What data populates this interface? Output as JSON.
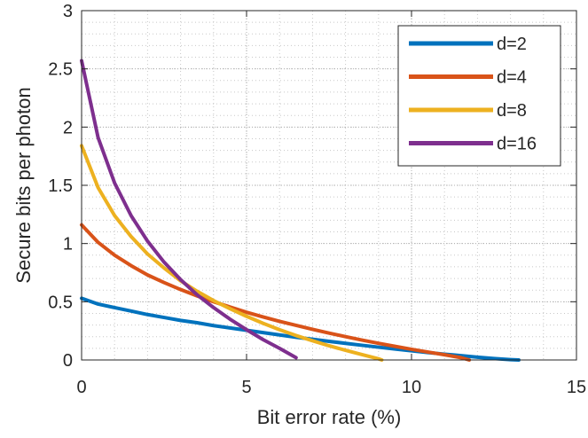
{
  "chart_data": {
    "type": "line",
    "title": "",
    "xlabel": "Bit error rate (%)",
    "ylabel": "Secure bits per photon",
    "xlim": [
      0,
      15
    ],
    "ylim": [
      0,
      3
    ],
    "xticks": [
      0,
      5,
      10,
      15
    ],
    "xtick_labels": [
      "0",
      "5",
      "10",
      "15"
    ],
    "yticks": [
      0,
      0.5,
      1,
      1.5,
      2,
      2.5,
      3
    ],
    "ytick_labels": [
      "0",
      "0.5",
      "1",
      "1.5",
      "2",
      "2.5",
      "3"
    ],
    "grid": true,
    "minor_grid": true,
    "legend_position": "top-right",
    "series": [
      {
        "name": "d=2",
        "color": "#0072BD",
        "x": [
          0,
          0.5,
          1,
          1.5,
          2,
          2.5,
          3,
          3.5,
          4,
          4.5,
          5,
          5.5,
          6,
          6.5,
          7,
          7.5,
          8,
          8.5,
          9,
          9.5,
          10,
          10.5,
          11,
          11.5,
          12,
          12.5,
          13,
          13.25
        ],
        "y": [
          0.53,
          0.48,
          0.45,
          0.42,
          0.39,
          0.365,
          0.34,
          0.32,
          0.295,
          0.275,
          0.255,
          0.235,
          0.215,
          0.195,
          0.178,
          0.16,
          0.143,
          0.126,
          0.11,
          0.094,
          0.079,
          0.064,
          0.05,
          0.037,
          0.024,
          0.012,
          0.003,
          0
        ]
      },
      {
        "name": "d=4",
        "color": "#D95319",
        "x": [
          0,
          0.5,
          1,
          1.5,
          2,
          2.5,
          3,
          3.5,
          4,
          4.5,
          5,
          5.5,
          6,
          6.5,
          7,
          7.5,
          8,
          8.5,
          9,
          9.5,
          10,
          10.5,
          11,
          11.5,
          11.75
        ],
        "y": [
          1.16,
          1.01,
          0.9,
          0.81,
          0.73,
          0.665,
          0.605,
          0.55,
          0.5,
          0.455,
          0.41,
          0.37,
          0.332,
          0.297,
          0.263,
          0.231,
          0.2,
          0.171,
          0.143,
          0.117,
          0.092,
          0.068,
          0.045,
          0.02,
          0
        ]
      },
      {
        "name": "d=8",
        "color": "#EDB120",
        "x": [
          0,
          0.5,
          1,
          1.5,
          2,
          2.5,
          3,
          3.5,
          4,
          4.5,
          5,
          5.5,
          6,
          6.5,
          7,
          7.5,
          8,
          8.5,
          9,
          9.1
        ],
        "y": [
          1.84,
          1.48,
          1.24,
          1.06,
          0.91,
          0.79,
          0.68,
          0.59,
          0.51,
          0.44,
          0.375,
          0.315,
          0.26,
          0.21,
          0.165,
          0.122,
          0.083,
          0.046,
          0.01,
          0
        ]
      },
      {
        "name": "d=16",
        "color": "#7E2F8E",
        "x": [
          0,
          0.5,
          1,
          1.5,
          2,
          2.5,
          3,
          3.5,
          4,
          4.5,
          5,
          5.5,
          6,
          6.5
        ],
        "y": [
          2.57,
          1.91,
          1.52,
          1.24,
          1.02,
          0.84,
          0.69,
          0.56,
          0.45,
          0.35,
          0.26,
          0.175,
          0.1,
          0.02
        ]
      }
    ]
  }
}
